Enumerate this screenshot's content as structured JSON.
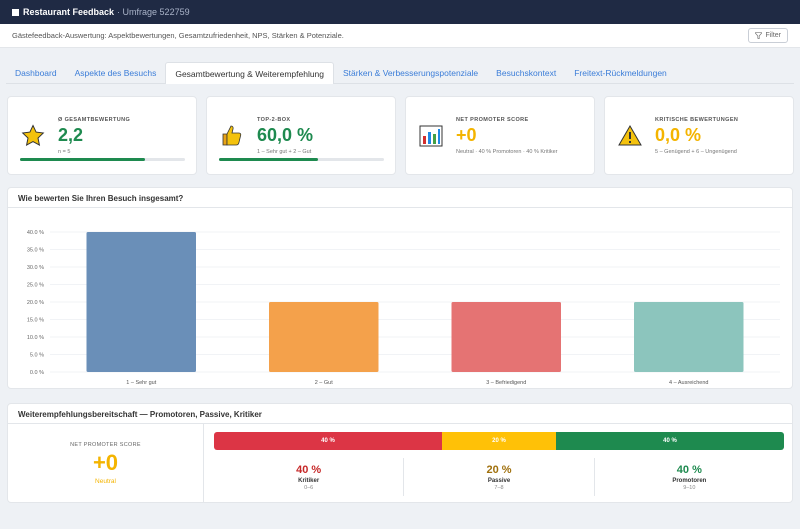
{
  "topbar": {
    "title": "Restaurant Feedback",
    "subtitle": "· Umfrage 522759"
  },
  "subheader": {
    "description": "Gästefeedback-Auswertung: Aspektbewertungen, Gesamtzufriedenheit, NPS, Stärken & Potenziale.",
    "filter_label": "Filter"
  },
  "tabs": [
    {
      "label": "Dashboard",
      "active": false
    },
    {
      "label": "Aspekte des Besuchs",
      "active": false
    },
    {
      "label": "Gesamtbewertung & Weiterempfehlung",
      "active": true
    },
    {
      "label": "Stärken & Verbesserungspotenziale",
      "active": false
    },
    {
      "label": "Besuchskontext",
      "active": false
    },
    {
      "label": "Freitext-Rückmeldungen",
      "active": false
    }
  ],
  "kpis": [
    {
      "label": "Ø GESAMTBEWERTUNG",
      "value": "2,2",
      "sub": "n = 5",
      "color": "#1e8a4f",
      "icon": "star-icon",
      "progress": 0.76
    },
    {
      "label": "TOP-2-BOX",
      "value": "60,0 %",
      "sub": "1 – Sehr gut + 2 – Gut",
      "color": "#1e8a4f",
      "icon": "thumbs-up-icon",
      "progress": 0.6
    },
    {
      "label": "NET PROMOTER SCORE",
      "value": "+0",
      "sub": "Neutral · 40 % Promotoren · 40 % Kritiker",
      "color": "#f4b400",
      "icon": "bar-chart-icon"
    },
    {
      "label": "KRITISCHE BEWERTUNGEN",
      "value": "0,0 %",
      "sub": "5 – Genügend + 6 – Ungenügend",
      "color": "#f4b400",
      "icon": "warning-icon"
    }
  ],
  "chart_section": {
    "title": "Wie bewerten Sie Ihren Besuch insgesamt?"
  },
  "chart_data": {
    "type": "bar",
    "title": "",
    "categories": [
      "1 – Sehr gut",
      "2 – Gut",
      "3 – Befriedigend",
      "4 – Ausreichend"
    ],
    "values": [
      40,
      20,
      20,
      20
    ],
    "colors": [
      "#6a8fb8",
      "#f4a14b",
      "#e57373",
      "#8cc5bd"
    ],
    "ylim": [
      0,
      40
    ],
    "yticks": [
      0,
      5,
      10,
      15,
      20,
      25,
      30,
      35,
      40
    ],
    "ytick_labels": [
      "0.0 %",
      "5.0 %",
      "10.0 %",
      "15.0 %",
      "20.0 %",
      "25.0 %",
      "30.0 %",
      "35.0 %",
      "40.0 %"
    ],
    "grid": true
  },
  "nps_section": {
    "title": "Weiterempfehlungsbereitschaft — Promotoren, Passive, Kritiker",
    "label": "NET PROMOTER SCORE",
    "value": "+0",
    "status": "Neutral",
    "segments": [
      {
        "label": "40 %",
        "share": 40,
        "color": "#dc3545"
      },
      {
        "label": "20 %",
        "share": 20,
        "color": "#ffc107"
      },
      {
        "label": "40 %",
        "share": 40,
        "color": "#1e8a4f"
      }
    ],
    "breakdown": [
      {
        "pct": "40 %",
        "name": "Kritiker",
        "range": "0–6",
        "color": "#c62828"
      },
      {
        "pct": "20 %",
        "name": "Passive",
        "range": "7–8",
        "color": "#a0700c"
      },
      {
        "pct": "40 %",
        "name": "Promotoren",
        "range": "9–10",
        "color": "#1e8a4f"
      }
    ]
  }
}
